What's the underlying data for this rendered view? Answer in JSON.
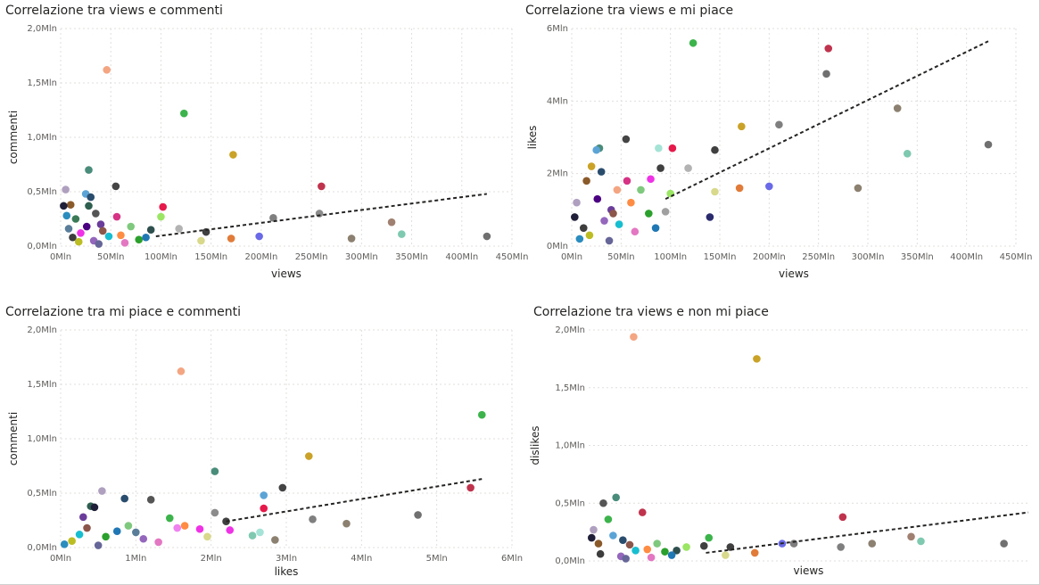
{
  "colors": {
    "grid": "#e1dfdd",
    "trend": "#252423",
    "text": "#252423",
    "ticks": "#605e5c"
  },
  "chart_data": [
    {
      "type": "scatter",
      "title": "Correlazione tra views e commenti",
      "xlabel": "views",
      "ylabel": "commenti",
      "xlim": [
        0,
        450
      ],
      "ylim": [
        0,
        2.0
      ],
      "xticks": [
        {
          "v": 0,
          "label": "0Mln"
        },
        {
          "v": 50,
          "label": "50Mln"
        },
        {
          "v": 100,
          "label": "100Mln"
        },
        {
          "v": 150,
          "label": "150Mln"
        },
        {
          "v": 200,
          "label": "200Mln"
        },
        {
          "v": 250,
          "label": "250Mln"
        },
        {
          "v": 300,
          "label": "300Mln"
        },
        {
          "v": 350,
          "label": "350Mln"
        },
        {
          "v": 400,
          "label": "400Mln"
        },
        {
          "v": 450,
          "label": "450Mln"
        }
      ],
      "yticks": [
        {
          "v": 0,
          "label": "0,0Mln"
        },
        {
          "v": 0.5,
          "label": "0,5Mln"
        },
        {
          "v": 1.0,
          "label": "1,0Mln"
        },
        {
          "v": 1.5,
          "label": "1,5Mln"
        },
        {
          "v": 2.0,
          "label": "2,0Mln"
        }
      ],
      "trend": [
        [
          95,
          0.09
        ],
        [
          425,
          0.48
        ]
      ],
      "points": [
        {
          "x": 46,
          "y": 1.62,
          "c": "#f4a582"
        },
        {
          "x": 123,
          "y": 1.22,
          "c": "#3cb44b"
        },
        {
          "x": 172,
          "y": 0.84,
          "c": "#c9a227"
        },
        {
          "x": 28,
          "y": 0.7,
          "c": "#4a8c7a"
        },
        {
          "x": 55,
          "y": 0.55,
          "c": "#444444"
        },
        {
          "x": 260,
          "y": 0.55,
          "c": "#c0334d"
        },
        {
          "x": 5,
          "y": 0.52,
          "c": "#b0a0c0"
        },
        {
          "x": 25,
          "y": 0.48,
          "c": "#5ca4d6"
        },
        {
          "x": 30,
          "y": 0.45,
          "c": "#2a4d6e"
        },
        {
          "x": 10,
          "y": 0.38,
          "c": "#8b5a2b"
        },
        {
          "x": 102,
          "y": 0.36,
          "c": "#e6194b"
        },
        {
          "x": 28,
          "y": 0.37,
          "c": "#2e5e4e"
        },
        {
          "x": 3,
          "y": 0.37,
          "c": "#1f1f3a"
        },
        {
          "x": 35,
          "y": 0.3,
          "c": "#555555"
        },
        {
          "x": 56,
          "y": 0.27,
          "c": "#d63384"
        },
        {
          "x": 100,
          "y": 0.27,
          "c": "#9be564"
        },
        {
          "x": 258,
          "y": 0.3,
          "c": "#8c8c8c"
        },
        {
          "x": 212,
          "y": 0.26,
          "c": "#7f7f7f"
        },
        {
          "x": 330,
          "y": 0.22,
          "c": "#a08070"
        },
        {
          "x": 15,
          "y": 0.25,
          "c": "#3b7a57"
        },
        {
          "x": 40,
          "y": 0.2,
          "c": "#6a3d9a"
        },
        {
          "x": 70,
          "y": 0.18,
          "c": "#7fc97f"
        },
        {
          "x": 90,
          "y": 0.15,
          "c": "#2f4f4f"
        },
        {
          "x": 145,
          "y": 0.13,
          "c": "#404040"
        },
        {
          "x": 118,
          "y": 0.16,
          "c": "#b3b3b3"
        },
        {
          "x": 198,
          "y": 0.09,
          "c": "#6a6ae8"
        },
        {
          "x": 170,
          "y": 0.07,
          "c": "#e07b39"
        },
        {
          "x": 340,
          "y": 0.11,
          "c": "#7fc9b0"
        },
        {
          "x": 290,
          "y": 0.07,
          "c": "#8c8070"
        },
        {
          "x": 425,
          "y": 0.09,
          "c": "#707070"
        },
        {
          "x": 140,
          "y": 0.05,
          "c": "#d9d98c"
        },
        {
          "x": 20,
          "y": 0.12,
          "c": "#f032e6"
        },
        {
          "x": 12,
          "y": 0.08,
          "c": "#3d3d3d"
        },
        {
          "x": 8,
          "y": 0.16,
          "c": "#5a7d9a"
        },
        {
          "x": 60,
          "y": 0.1,
          "c": "#ff8c42"
        },
        {
          "x": 78,
          "y": 0.06,
          "c": "#2ca02c"
        },
        {
          "x": 33,
          "y": 0.05,
          "c": "#9467bd"
        },
        {
          "x": 48,
          "y": 0.09,
          "c": "#17becf"
        },
        {
          "x": 18,
          "y": 0.04,
          "c": "#bcbd22"
        },
        {
          "x": 64,
          "y": 0.03,
          "c": "#e377c2"
        },
        {
          "x": 85,
          "y": 0.08,
          "c": "#1f77b4"
        },
        {
          "x": 42,
          "y": 0.14,
          "c": "#8c564b"
        },
        {
          "x": 26,
          "y": 0.18,
          "c": "#4b0082"
        },
        {
          "x": 6,
          "y": 0.28,
          "c": "#2b8cbe"
        },
        {
          "x": 38,
          "y": 0.02,
          "c": "#666699"
        }
      ]
    },
    {
      "type": "scatter",
      "title": "Correlazione tra views e mi piace",
      "xlabel": "views",
      "ylabel": "likes",
      "xlim": [
        0,
        450
      ],
      "ylim": [
        0,
        6
      ],
      "xticks": [
        {
          "v": 0,
          "label": "0Mln"
        },
        {
          "v": 50,
          "label": "50Mln"
        },
        {
          "v": 100,
          "label": "100Mln"
        },
        {
          "v": 150,
          "label": "150Mln"
        },
        {
          "v": 200,
          "label": "200Mln"
        },
        {
          "v": 250,
          "label": "250Mln"
        },
        {
          "v": 300,
          "label": "300Mln"
        },
        {
          "v": 350,
          "label": "350Mln"
        },
        {
          "v": 400,
          "label": "400Mln"
        },
        {
          "v": 450,
          "label": "450Mln"
        }
      ],
      "yticks": [
        {
          "v": 0,
          "label": "0Mln"
        },
        {
          "v": 2,
          "label": "2Mln"
        },
        {
          "v": 4,
          "label": "4Mln"
        },
        {
          "v": 6,
          "label": "6Mln"
        }
      ],
      "trend": [
        [
          95,
          1.3
        ],
        [
          422,
          5.65
        ]
      ],
      "points": [
        {
          "x": 123,
          "y": 5.6,
          "c": "#3cb44b"
        },
        {
          "x": 260,
          "y": 5.45,
          "c": "#c0334d"
        },
        {
          "x": 258,
          "y": 4.75,
          "c": "#707070"
        },
        {
          "x": 330,
          "y": 3.8,
          "c": "#8c8070"
        },
        {
          "x": 210,
          "y": 3.35,
          "c": "#7f7f7f"
        },
        {
          "x": 172,
          "y": 3.3,
          "c": "#c9a227"
        },
        {
          "x": 422,
          "y": 2.8,
          "c": "#707070"
        },
        {
          "x": 340,
          "y": 2.55,
          "c": "#7fc9b0"
        },
        {
          "x": 145,
          "y": 2.65,
          "c": "#404040"
        },
        {
          "x": 55,
          "y": 2.95,
          "c": "#444444"
        },
        {
          "x": 102,
          "y": 2.7,
          "c": "#e6194b"
        },
        {
          "x": 28,
          "y": 2.7,
          "c": "#4a8c7a"
        },
        {
          "x": 88,
          "y": 2.7,
          "c": "#a6e3d7"
        },
        {
          "x": 25,
          "y": 2.65,
          "c": "#5ca4d6"
        },
        {
          "x": 290,
          "y": 1.6,
          "c": "#8c8070"
        },
        {
          "x": 200,
          "y": 1.65,
          "c": "#6a6ae8"
        },
        {
          "x": 170,
          "y": 1.6,
          "c": "#e07b39"
        },
        {
          "x": 145,
          "y": 1.5,
          "c": "#d9d98c"
        },
        {
          "x": 140,
          "y": 0.8,
          "c": "#2a2a6e"
        },
        {
          "x": 118,
          "y": 2.15,
          "c": "#b3b3b3"
        },
        {
          "x": 90,
          "y": 2.15,
          "c": "#404040"
        },
        {
          "x": 70,
          "y": 1.55,
          "c": "#7fc97f"
        },
        {
          "x": 46,
          "y": 1.55,
          "c": "#f4a582"
        },
        {
          "x": 20,
          "y": 2.2,
          "c": "#c9a227"
        },
        {
          "x": 30,
          "y": 2.05,
          "c": "#2a4d6e"
        },
        {
          "x": 15,
          "y": 1.8,
          "c": "#8b5a2b"
        },
        {
          "x": 100,
          "y": 1.45,
          "c": "#9be564"
        },
        {
          "x": 5,
          "y": 1.2,
          "c": "#b0a0c0"
        },
        {
          "x": 40,
          "y": 1.0,
          "c": "#6a3d9a"
        },
        {
          "x": 60,
          "y": 1.2,
          "c": "#ff8c42"
        },
        {
          "x": 78,
          "y": 0.9,
          "c": "#2ca02c"
        },
        {
          "x": 33,
          "y": 0.7,
          "c": "#9467bd"
        },
        {
          "x": 48,
          "y": 0.6,
          "c": "#17becf"
        },
        {
          "x": 12,
          "y": 0.5,
          "c": "#3d3d3d"
        },
        {
          "x": 64,
          "y": 0.4,
          "c": "#e377c2"
        },
        {
          "x": 85,
          "y": 0.5,
          "c": "#1f77b4"
        },
        {
          "x": 42,
          "y": 0.9,
          "c": "#8c564b"
        },
        {
          "x": 26,
          "y": 1.3,
          "c": "#4b0082"
        },
        {
          "x": 8,
          "y": 0.2,
          "c": "#2b8cbe"
        },
        {
          "x": 18,
          "y": 0.3,
          "c": "#bcbd22"
        },
        {
          "x": 56,
          "y": 1.8,
          "c": "#d63384"
        },
        {
          "x": 38,
          "y": 0.15,
          "c": "#666699"
        },
        {
          "x": 95,
          "y": 0.95,
          "c": "#a0a0a0"
        },
        {
          "x": 80,
          "y": 1.85,
          "c": "#f032e6"
        },
        {
          "x": 3,
          "y": 0.8,
          "c": "#1f1f3a"
        }
      ]
    },
    {
      "type": "scatter",
      "title": "Correlazione tra mi piace e commenti",
      "xlabel": "likes",
      "ylabel": "commenti",
      "xlim": [
        0,
        6
      ],
      "ylim": [
        0,
        2.0
      ],
      "xticks": [
        {
          "v": 0,
          "label": "0Mln"
        },
        {
          "v": 1,
          "label": "1Mln"
        },
        {
          "v": 2,
          "label": "2Mln"
        },
        {
          "v": 3,
          "label": "3Mln"
        },
        {
          "v": 4,
          "label": "4Mln"
        },
        {
          "v": 5,
          "label": "5Mln"
        },
        {
          "v": 6,
          "label": "6Mln"
        }
      ],
      "yticks": [
        {
          "v": 0,
          "label": "0,0Mln"
        },
        {
          "v": 0.5,
          "label": "0,5Mln"
        },
        {
          "v": 1.0,
          "label": "1,0Mln"
        },
        {
          "v": 1.5,
          "label": "1,5Mln"
        },
        {
          "v": 2.0,
          "label": "2,0Mln"
        }
      ],
      "trend": [
        [
          2.2,
          0.24
        ],
        [
          5.6,
          0.63
        ]
      ],
      "points": [
        {
          "x": 1.6,
          "y": 1.62,
          "c": "#f4a582"
        },
        {
          "x": 5.6,
          "y": 1.22,
          "c": "#3cb44b"
        },
        {
          "x": 3.3,
          "y": 0.84,
          "c": "#c9a227"
        },
        {
          "x": 2.05,
          "y": 0.7,
          "c": "#4a8c7a"
        },
        {
          "x": 2.95,
          "y": 0.55,
          "c": "#444444"
        },
        {
          "x": 5.45,
          "y": 0.55,
          "c": "#c0334d"
        },
        {
          "x": 0.55,
          "y": 0.52,
          "c": "#b0a0c0"
        },
        {
          "x": 2.7,
          "y": 0.48,
          "c": "#5ca4d6"
        },
        {
          "x": 0.85,
          "y": 0.45,
          "c": "#2a4d6e"
        },
        {
          "x": 1.2,
          "y": 0.44,
          "c": "#555555"
        },
        {
          "x": 2.7,
          "y": 0.36,
          "c": "#e6194b"
        },
        {
          "x": 0.4,
          "y": 0.38,
          "c": "#2e5e4e"
        },
        {
          "x": 0.45,
          "y": 0.37,
          "c": "#1f1f3a"
        },
        {
          "x": 4.75,
          "y": 0.3,
          "c": "#707070"
        },
        {
          "x": 3.35,
          "y": 0.26,
          "c": "#7f7f7f"
        },
        {
          "x": 3.8,
          "y": 0.22,
          "c": "#8c8070"
        },
        {
          "x": 2.05,
          "y": 0.32,
          "c": "#8c8c8c"
        },
        {
          "x": 2.2,
          "y": 0.24,
          "c": "#404040"
        },
        {
          "x": 1.45,
          "y": 0.27,
          "c": "#3cb44b"
        },
        {
          "x": 0.3,
          "y": 0.28,
          "c": "#6a3d9a"
        },
        {
          "x": 2.55,
          "y": 0.11,
          "c": "#7fc9b0"
        },
        {
          "x": 2.85,
          "y": 0.07,
          "c": "#8c8070"
        },
        {
          "x": 2.65,
          "y": 0.14,
          "c": "#a6e3d7"
        },
        {
          "x": 1.85,
          "y": 0.17,
          "c": "#f032e6"
        },
        {
          "x": 1.65,
          "y": 0.2,
          "c": "#ff8c42"
        },
        {
          "x": 1.55,
          "y": 0.18,
          "c": "#ee82ee"
        },
        {
          "x": 0.9,
          "y": 0.2,
          "c": "#7fc97f"
        },
        {
          "x": 0.6,
          "y": 0.1,
          "c": "#2ca02c"
        },
        {
          "x": 1.1,
          "y": 0.08,
          "c": "#9467bd"
        },
        {
          "x": 0.25,
          "y": 0.12,
          "c": "#17becf"
        },
        {
          "x": 0.15,
          "y": 0.06,
          "c": "#bcbd22"
        },
        {
          "x": 1.3,
          "y": 0.05,
          "c": "#e377c2"
        },
        {
          "x": 0.75,
          "y": 0.15,
          "c": "#1f77b4"
        },
        {
          "x": 0.35,
          "y": 0.18,
          "c": "#8c564b"
        },
        {
          "x": 1.95,
          "y": 0.1,
          "c": "#d9d98c"
        },
        {
          "x": 0.05,
          "y": 0.03,
          "c": "#2b8cbe"
        },
        {
          "x": 0.5,
          "y": 0.02,
          "c": "#666699"
        },
        {
          "x": 1.0,
          "y": 0.14,
          "c": "#5a7d9a"
        },
        {
          "x": 2.25,
          "y": 0.16,
          "c": "#f032e6"
        }
      ]
    },
    {
      "type": "scatter",
      "title": "Correlazione tra views e non mi piace",
      "xlabel": "views",
      "ylabel": "dislikes",
      "xlim": [
        0,
        450
      ],
      "ylim": [
        0,
        2.0
      ],
      "xticks": [],
      "yticks": [
        {
          "v": 0,
          "label": "0,0Mln"
        },
        {
          "v": 0.5,
          "label": "0,5Mln"
        },
        {
          "v": 1.0,
          "label": "1,0Mln"
        },
        {
          "v": 1.5,
          "label": "1,5Mln"
        },
        {
          "v": 2.0,
          "label": "2,0Mln"
        }
      ],
      "trend": [
        [
          120,
          0.07
        ],
        [
          450,
          0.42
        ]
      ],
      "points": [
        {
          "x": 46,
          "y": 1.94,
          "c": "#f4a582"
        },
        {
          "x": 172,
          "y": 1.75,
          "c": "#c9a227"
        },
        {
          "x": 28,
          "y": 0.55,
          "c": "#4a8c7a"
        },
        {
          "x": 55,
          "y": 0.42,
          "c": "#c0334d"
        },
        {
          "x": 15,
          "y": 0.5,
          "c": "#555555"
        },
        {
          "x": 20,
          "y": 0.36,
          "c": "#3cb44b"
        },
        {
          "x": 260,
          "y": 0.38,
          "c": "#c0334d"
        },
        {
          "x": 330,
          "y": 0.21,
          "c": "#a08070"
        },
        {
          "x": 340,
          "y": 0.17,
          "c": "#7fc9b0"
        },
        {
          "x": 290,
          "y": 0.15,
          "c": "#8c8070"
        },
        {
          "x": 258,
          "y": 0.12,
          "c": "#7f7f7f"
        },
        {
          "x": 425,
          "y": 0.15,
          "c": "#707070"
        },
        {
          "x": 198,
          "y": 0.15,
          "c": "#6a6ae8"
        },
        {
          "x": 210,
          "y": 0.15,
          "c": "#7f7f7f"
        },
        {
          "x": 170,
          "y": 0.07,
          "c": "#e07b39"
        },
        {
          "x": 140,
          "y": 0.05,
          "c": "#d9d98c"
        },
        {
          "x": 123,
          "y": 0.2,
          "c": "#3cb44b"
        },
        {
          "x": 118,
          "y": 0.13,
          "c": "#404040"
        },
        {
          "x": 5,
          "y": 0.27,
          "c": "#b0a0c0"
        },
        {
          "x": 25,
          "y": 0.22,
          "c": "#5ca4d6"
        },
        {
          "x": 10,
          "y": 0.15,
          "c": "#8b5a2b"
        },
        {
          "x": 35,
          "y": 0.18,
          "c": "#2a4d6e"
        },
        {
          "x": 60,
          "y": 0.1,
          "c": "#ff8c42"
        },
        {
          "x": 78,
          "y": 0.08,
          "c": "#2ca02c"
        },
        {
          "x": 42,
          "y": 0.14,
          "c": "#8c564b"
        },
        {
          "x": 90,
          "y": 0.09,
          "c": "#2f4f4f"
        },
        {
          "x": 100,
          "y": 0.12,
          "c": "#9be564"
        },
        {
          "x": 12,
          "y": 0.06,
          "c": "#3d3d3d"
        },
        {
          "x": 33,
          "y": 0.04,
          "c": "#9467bd"
        },
        {
          "x": 48,
          "y": 0.09,
          "c": "#17becf"
        },
        {
          "x": 64,
          "y": 0.03,
          "c": "#e377c2"
        },
        {
          "x": 85,
          "y": 0.05,
          "c": "#1f77b4"
        },
        {
          "x": 3,
          "y": 0.2,
          "c": "#1f1f3a"
        },
        {
          "x": 70,
          "y": 0.15,
          "c": "#7fc97f"
        },
        {
          "x": 38,
          "y": 0.02,
          "c": "#666699"
        },
        {
          "x": 145,
          "y": 0.12,
          "c": "#404040"
        }
      ]
    }
  ]
}
